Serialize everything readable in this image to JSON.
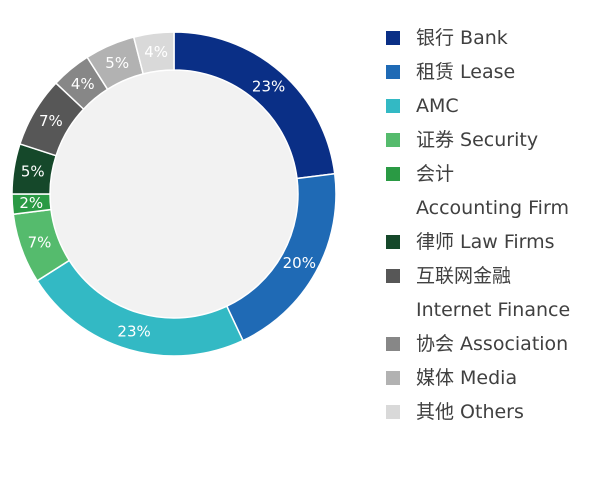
{
  "chart_data": {
    "type": "pie",
    "variant": "donut",
    "title": "",
    "slices": [
      {
        "label": "银行 Bank",
        "value": 23,
        "display": "23%",
        "color": "#0a2f86"
      },
      {
        "label": "租赁 Lease",
        "value": 20,
        "display": "20%",
        "color": "#1f6ab5"
      },
      {
        "label": "AMC",
        "value": 23,
        "display": "23%",
        "color": "#33b9c4"
      },
      {
        "label": "证券 Security",
        "value": 7,
        "display": "7%",
        "color": "#55bb6d"
      },
      {
        "label": "会计 Accounting Firm",
        "value": 2,
        "display": "2%",
        "color": "#2a9a44"
      },
      {
        "label": "律师 Law Firms",
        "value": 5,
        "display": "5%",
        "color": "#15482a"
      },
      {
        "label": "互联网金融 Internet Finance",
        "value": 7,
        "display": "7%",
        "color": "#575757"
      },
      {
        "label": "协会 Association",
        "value": 4,
        "display": "4%",
        "color": "#878787"
      },
      {
        "label": "媒体 Media",
        "value": 5,
        "display": "5%",
        "color": "#b2b2b2"
      },
      {
        "label": "其他 Others",
        "value": 4,
        "display": "4%",
        "color": "#d9d9d9"
      }
    ],
    "legend": {
      "placement": "right",
      "entries": [
        {
          "lines": [
            "银行 Bank"
          ],
          "color": "#0a2f86"
        },
        {
          "lines": [
            "租赁 Lease"
          ],
          "color": "#1f6ab5"
        },
        {
          "lines": [
            "AMC"
          ],
          "color": "#33b9c4"
        },
        {
          "lines": [
            "证券 Security"
          ],
          "color": "#55bb6d"
        },
        {
          "lines": [
            "会计",
            "Accounting Firm"
          ],
          "color": "#2a9a44"
        },
        {
          "lines": [
            "律师 Law Firms"
          ],
          "color": "#15482a"
        },
        {
          "lines": [
            "互联网金融",
            "Internet Finance"
          ],
          "color": "#575757"
        },
        {
          "lines": [
            "协会 Association"
          ],
          "color": "#878787"
        },
        {
          "lines": [
            "媒体 Media"
          ],
          "color": "#b2b2b2"
        },
        {
          "lines": [
            "其他 Others"
          ],
          "color": "#d9d9d9"
        }
      ]
    },
    "center_fill": "#f2f2f2"
  }
}
